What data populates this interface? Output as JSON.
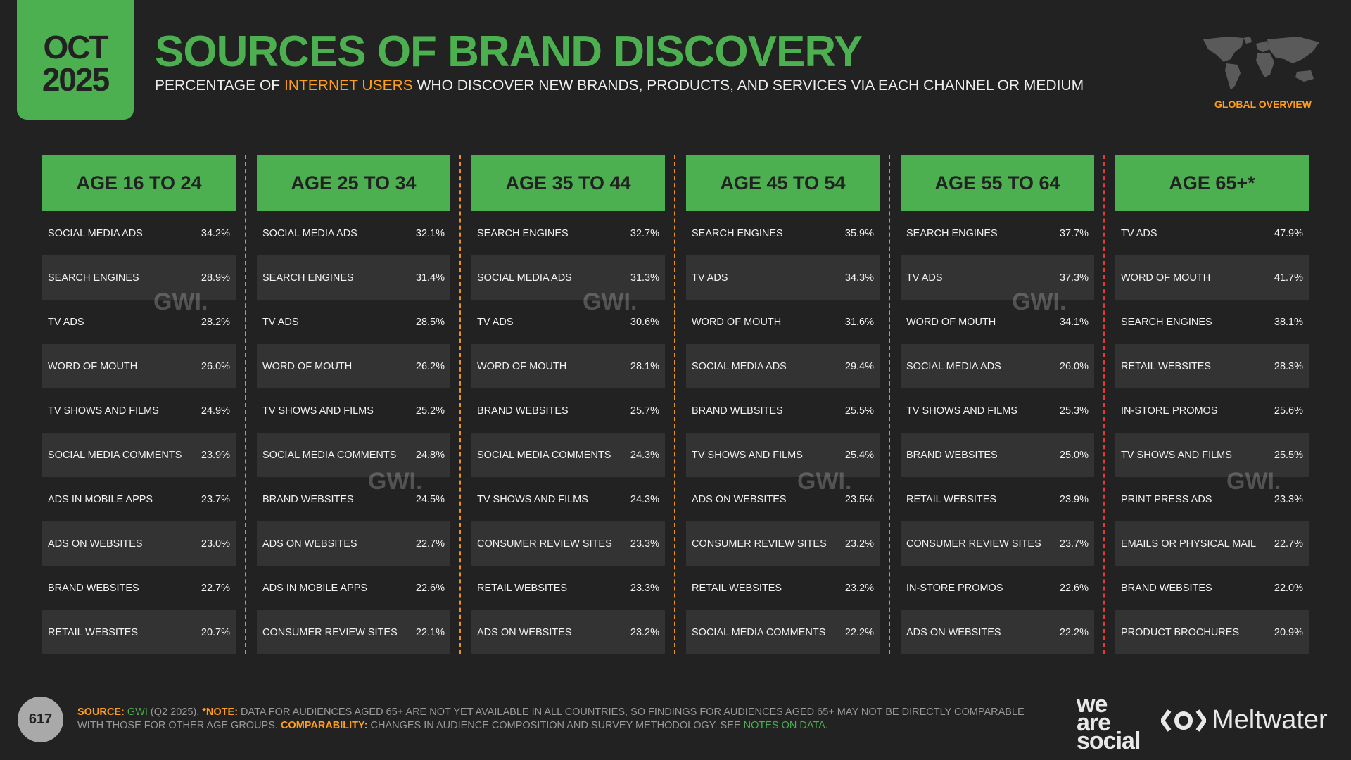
{
  "date": {
    "month": "OCT",
    "year": "2025"
  },
  "title": "SOURCES OF BRAND DISCOVERY",
  "subtitle": {
    "pre": "PERCENTAGE OF ",
    "highlight": "INTERNET USERS",
    "post": " WHO DISCOVER NEW BRANDS, PRODUCTS, AND SERVICES VIA EACH CHANNEL OR MEDIUM"
  },
  "region": "GLOBAL OVERVIEW",
  "watermark": "GWI.",
  "colors": {
    "green": "#4caf50",
    "orange": "#ff9e1b",
    "background": "#222222"
  },
  "columns": [
    {
      "header": "AGE 16 TO 24",
      "rows": [
        [
          "SOCIAL MEDIA ADS",
          "34.2%"
        ],
        [
          "SEARCH ENGINES",
          "28.9%"
        ],
        [
          "TV ADS",
          "28.2%"
        ],
        [
          "WORD OF MOUTH",
          "26.0%"
        ],
        [
          "TV SHOWS AND FILMS",
          "24.9%"
        ],
        [
          "SOCIAL MEDIA COMMENTS",
          "23.9%"
        ],
        [
          "ADS IN MOBILE APPS",
          "23.7%"
        ],
        [
          "ADS ON WEBSITES",
          "23.0%"
        ],
        [
          "BRAND WEBSITES",
          "22.7%"
        ],
        [
          "RETAIL WEBSITES",
          "20.7%"
        ]
      ]
    },
    {
      "header": "AGE 25 TO 34",
      "rows": [
        [
          "SOCIAL MEDIA ADS",
          "32.1%"
        ],
        [
          "SEARCH ENGINES",
          "31.4%"
        ],
        [
          "TV ADS",
          "28.5%"
        ],
        [
          "WORD OF MOUTH",
          "26.2%"
        ],
        [
          "TV SHOWS AND FILMS",
          "25.2%"
        ],
        [
          "SOCIAL MEDIA COMMENTS",
          "24.8%"
        ],
        [
          "BRAND WEBSITES",
          "24.5%"
        ],
        [
          "ADS ON WEBSITES",
          "22.7%"
        ],
        [
          "ADS IN MOBILE APPS",
          "22.6%"
        ],
        [
          "CONSUMER REVIEW SITES",
          "22.1%"
        ]
      ]
    },
    {
      "header": "AGE 35 TO 44",
      "rows": [
        [
          "SEARCH ENGINES",
          "32.7%"
        ],
        [
          "SOCIAL MEDIA ADS",
          "31.3%"
        ],
        [
          "TV ADS",
          "30.6%"
        ],
        [
          "WORD OF MOUTH",
          "28.1%"
        ],
        [
          "BRAND WEBSITES",
          "25.7%"
        ],
        [
          "SOCIAL MEDIA COMMENTS",
          "24.3%"
        ],
        [
          "TV SHOWS AND FILMS",
          "24.3%"
        ],
        [
          "CONSUMER REVIEW SITES",
          "23.3%"
        ],
        [
          "RETAIL WEBSITES",
          "23.3%"
        ],
        [
          "ADS ON WEBSITES",
          "23.2%"
        ]
      ]
    },
    {
      "header": "AGE 45 TO 54",
      "rows": [
        [
          "SEARCH ENGINES",
          "35.9%"
        ],
        [
          "TV ADS",
          "34.3%"
        ],
        [
          "WORD OF MOUTH",
          "31.6%"
        ],
        [
          "SOCIAL MEDIA ADS",
          "29.4%"
        ],
        [
          "BRAND WEBSITES",
          "25.5%"
        ],
        [
          "TV SHOWS AND FILMS",
          "25.4%"
        ],
        [
          "ADS ON WEBSITES",
          "23.5%"
        ],
        [
          "CONSUMER REVIEW SITES",
          "23.2%"
        ],
        [
          "RETAIL WEBSITES",
          "23.2%"
        ],
        [
          "SOCIAL MEDIA COMMENTS",
          "22.2%"
        ]
      ]
    },
    {
      "header": "AGE 55 TO 64",
      "rows": [
        [
          "SEARCH ENGINES",
          "37.7%"
        ],
        [
          "TV ADS",
          "37.3%"
        ],
        [
          "WORD OF MOUTH",
          "34.1%"
        ],
        [
          "SOCIAL MEDIA ADS",
          "26.0%"
        ],
        [
          "TV SHOWS AND FILMS",
          "25.3%"
        ],
        [
          "BRAND WEBSITES",
          "25.0%"
        ],
        [
          "RETAIL WEBSITES",
          "23.9%"
        ],
        [
          "CONSUMER REVIEW SITES",
          "23.7%"
        ],
        [
          "IN-STORE PROMOS",
          "22.6%"
        ],
        [
          "ADS ON WEBSITES",
          "22.2%"
        ]
      ]
    },
    {
      "header": "AGE 65+*",
      "rows": [
        [
          "TV ADS",
          "47.9%"
        ],
        [
          "WORD OF MOUTH",
          "41.7%"
        ],
        [
          "SEARCH ENGINES",
          "38.1%"
        ],
        [
          "RETAIL WEBSITES",
          "28.3%"
        ],
        [
          "IN-STORE PROMOS",
          "25.6%"
        ],
        [
          "TV SHOWS AND FILMS",
          "25.5%"
        ],
        [
          "PRINT PRESS ADS",
          "23.3%"
        ],
        [
          "EMAILS OR PHYSICAL MAIL",
          "22.7%"
        ],
        [
          "BRAND WEBSITES",
          "22.0%"
        ],
        [
          "PRODUCT BROCHURES",
          "20.9%"
        ]
      ]
    }
  ],
  "footer": {
    "page": "617",
    "source_label": "SOURCE:",
    "source": "GWI",
    "source_rest": " (Q2 2025). ",
    "note_label": "*NOTE:",
    "note": " DATA FOR AUDIENCES AGED 65+ ARE NOT YET AVAILABLE IN ALL COUNTRIES, SO FINDINGS FOR AUDIENCES AGED 65+ MAY NOT BE DIRECTLY COMPARABLE WITH THOSE FOR OTHER AGE GROUPS. ",
    "comp_label": "COMPARABILITY:",
    "comp": " CHANGES IN AUDIENCE COMPOSITION AND SURVEY METHODOLOGY. SEE ",
    "notes_link": "NOTES ON DATA",
    "end": "."
  },
  "logos": {
    "we_are_social": [
      "we",
      "are",
      "social"
    ],
    "meltwater": "Meltwater"
  }
}
